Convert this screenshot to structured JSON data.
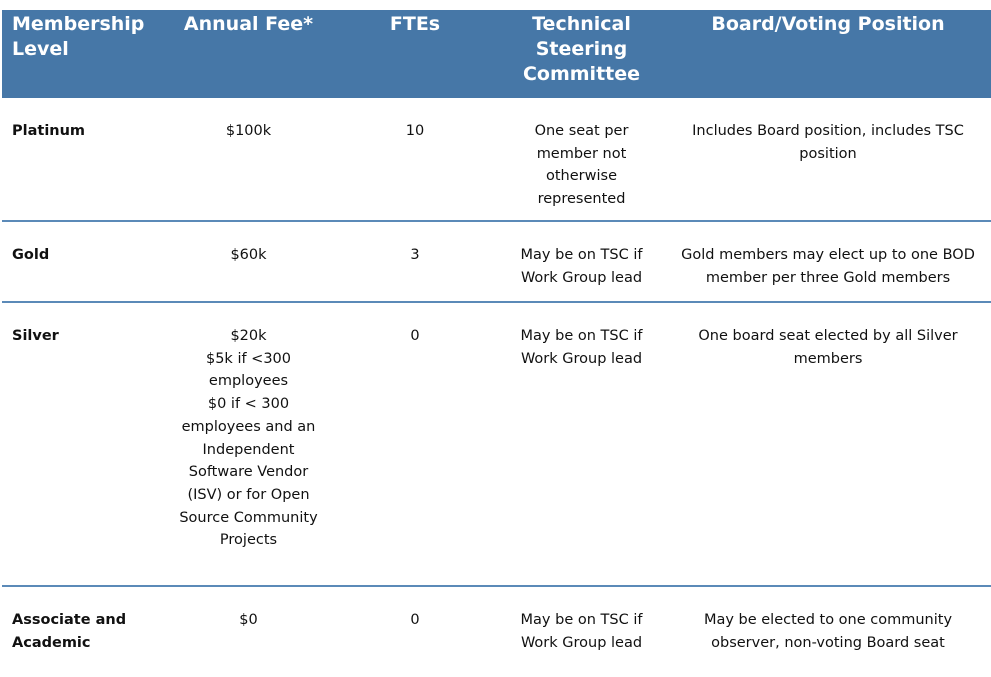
{
  "table": {
    "headers": [
      "Membership Level",
      "Annual Fee*",
      "FTEs",
      "Technical Steering Committee",
      "Board/Voting Position"
    ],
    "rows": [
      {
        "level": "Platinum",
        "fee": [
          "$100k"
        ],
        "ftes": "10",
        "tsc": "One seat per member not otherwise represented",
        "board": "Includes Board position, includes TSC position"
      },
      {
        "level": "Gold",
        "fee": [
          "$60k"
        ],
        "ftes": "3",
        "tsc": "May be on TSC if Work Group lead",
        "board": "Gold members may elect up to one BOD member per three Gold members"
      },
      {
        "level": "Silver",
        "fee": [
          "$20k",
          "$5k if <300 employees",
          "$0 if < 300 employees and an Independent Software Vendor (ISV) or for Open Source Community Projects"
        ],
        "ftes": "0",
        "tsc": "May be on TSC if Work Group lead",
        "board": "One board seat elected by all Silver members"
      },
      {
        "level": "Associate and Academic",
        "fee": [
          "$0"
        ],
        "ftes": "0",
        "tsc": "May be on TSC if Work Group lead",
        "board": "May be elected to one community observer, non-voting Board seat"
      }
    ]
  }
}
